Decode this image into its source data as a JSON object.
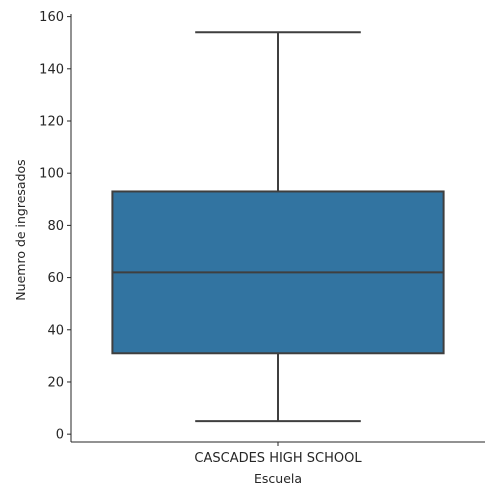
{
  "chart_data": {
    "type": "box",
    "xlabel": "Escuela",
    "ylabel": "Nuemro de ingresados",
    "categories": [
      "CASCADES HIGH SCHOOL"
    ],
    "boxes": [
      {
        "category": "CASCADES HIGH SCHOOL",
        "whisker_low": 5,
        "q1": 31,
        "median": 62,
        "q3": 93,
        "whisker_high": 154
      }
    ],
    "ylim": [
      -3,
      161
    ],
    "yticks": [
      0,
      20,
      40,
      60,
      80,
      100,
      120,
      140,
      160
    ],
    "grid": false,
    "colors": {
      "box_fill": "#3274a1",
      "line": "#3f3f3f",
      "axis": "#262626"
    }
  }
}
